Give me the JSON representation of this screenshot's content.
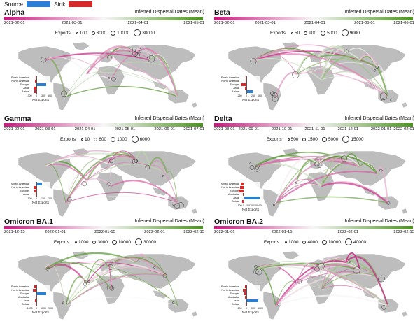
{
  "legend": {
    "source_label": "Source",
    "sink_label": "Sink",
    "source_color": "#2a7fd4",
    "sink_color": "#d42a2a"
  },
  "gradient_title": "Inferred Dispersal Dates (Mean)",
  "exports_label": "Exports",
  "net_exports_label": "Net Exports",
  "colors": {
    "early": "#c51b7d",
    "mid": "#f7f7f7",
    "late": "#4d9221",
    "land": "#bdbdbd",
    "bar_pos": "#2a7fd4",
    "bar_neg": "#d42a2a"
  },
  "panels": [
    {
      "id": "alpha",
      "title": "Alpha",
      "dates": [
        "2021-02-01",
        "2021-03-01",
        "2021-04-01",
        "2021-05-01"
      ],
      "exports": [
        "100",
        "3000",
        "10000",
        "30000"
      ],
      "net_exports": [
        {
          "region": "South America",
          "value": -40
        },
        {
          "region": "North America",
          "value": -60
        },
        {
          "region": "Europe",
          "value": 420
        },
        {
          "region": "Asia",
          "value": -120
        },
        {
          "region": "Africa",
          "value": -80
        }
      ],
      "xticks": [
        "-300",
        "0",
        "300",
        "600"
      ],
      "xlim": [
        -300,
        600
      ]
    },
    {
      "id": "beta",
      "title": "Beta",
      "dates": [
        "2021-02-01",
        "2021-03-01",
        "2021-04-01",
        "2021-05-01",
        "2021-06-01"
      ],
      "exports": [
        "50",
        "900",
        "5000",
        "9000"
      ],
      "net_exports": [
        {
          "region": "South America",
          "value": -20
        },
        {
          "region": "North America",
          "value": -30
        },
        {
          "region": "Europe",
          "value": -200
        },
        {
          "region": "Asia",
          "value": -40
        },
        {
          "region": "Africa",
          "value": 260
        }
      ],
      "xticks": [
        "-250",
        "0",
        "250",
        "500"
      ],
      "xlim": [
        -250,
        500
      ]
    },
    {
      "id": "gamma",
      "title": "Gamma",
      "dates": [
        "2021-02-01",
        "2021-03-01",
        "2021-04-01",
        "2021-05-01",
        "2021-06-01",
        "2021-07-01"
      ],
      "exports": [
        "10",
        "600",
        "1000",
        "6000"
      ],
      "net_exports": [
        {
          "region": "South America",
          "value": 75
        },
        {
          "region": "North America",
          "value": -45
        },
        {
          "region": "Europe",
          "value": -30
        },
        {
          "region": "Asia",
          "value": -10
        }
      ],
      "xticks": [
        "-100",
        "0",
        "100",
        "200"
      ],
      "xlim": [
        -100,
        200
      ]
    },
    {
      "id": "delta",
      "title": "Delta",
      "dates": [
        "2021-08-01",
        "2021-09-01",
        "2021-10-01",
        "2021-11-01",
        "2021-12-01",
        "2022-01-01",
        "2022-02-01"
      ],
      "exports": [
        "500",
        "1500",
        "5000",
        "15000"
      ],
      "net_exports": [
        {
          "region": "South America",
          "value": -60
        },
        {
          "region": "North America",
          "value": -80
        },
        {
          "region": "Europe",
          "value": -120
        },
        {
          "region": "Australia",
          "value": -20
        },
        {
          "region": "Asia",
          "value": 380
        },
        {
          "region": "Africa",
          "value": -30
        }
      ],
      "xticks": [
        "-100",
        "0",
        "100",
        "200",
        "300",
        "400"
      ],
      "xlim": [
        -100,
        400
      ]
    },
    {
      "id": "ba1",
      "title": "Omicron BA.1",
      "dates": [
        "2021-12-15",
        "2022-01-01",
        "2022-01-15",
        "2022-02-01",
        "2022-02-15"
      ],
      "exports": [
        "1000",
        "3000",
        "10000",
        "30000"
      ],
      "net_exports": [
        {
          "region": "South America",
          "value": -300
        },
        {
          "region": "North America",
          "value": -500
        },
        {
          "region": "Europe",
          "value": 1400
        },
        {
          "region": "Australia",
          "value": -150
        },
        {
          "region": "Asia",
          "value": -250
        },
        {
          "region": "Africa",
          "value": -100
        }
      ],
      "xticks": [
        "-1000",
        "0",
        "1000",
        "2000"
      ],
      "xlim": [
        -1000,
        2000
      ]
    },
    {
      "id": "ba2",
      "title": "Omicron BA.2",
      "dates": [
        "2022-01-01",
        "2022-01-15",
        "2022-02-01",
        "2022-02-15"
      ],
      "exports": [
        "1000",
        "4000",
        "10000",
        "40000"
      ],
      "net_exports": [
        {
          "region": "South America",
          "value": -100
        },
        {
          "region": "North America",
          "value": -250
        },
        {
          "region": "Europe",
          "value": -150
        },
        {
          "region": "Australia",
          "value": -80
        },
        {
          "region": "Asia",
          "value": 850
        },
        {
          "region": "Africa",
          "value": -60
        }
      ],
      "xticks": [
        "-500",
        "0",
        "500",
        "1000"
      ],
      "xlim": [
        -500,
        1000
      ]
    }
  ]
}
